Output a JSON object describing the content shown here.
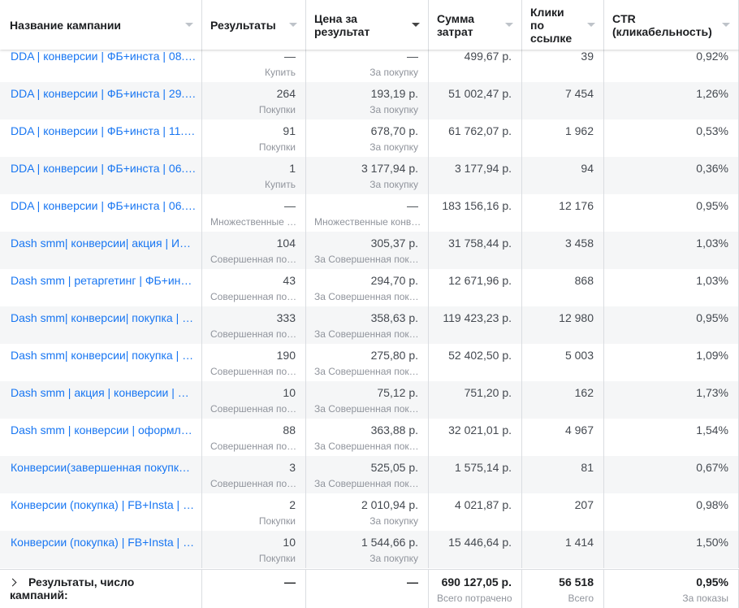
{
  "headers": [
    "Название кампании",
    "Результаты",
    "Цена за результат",
    "Сумма затрат",
    "Клики по ссылке",
    "CTR (кликабельность)"
  ],
  "rows": [
    {
      "name": "DDA | конверсии | ФБ+инста | 08.…",
      "results": "—",
      "results_sub": "Купить",
      "cpr": "—",
      "cpr_sub": "За покупку",
      "spend": "499,67 р.",
      "clicks": "39",
      "ctr": "0,92%"
    },
    {
      "name": "DDA | конверсии | ФБ+инста | 29.…",
      "results": "264",
      "results_sub": "Покупки",
      "cpr": "193,19 р.",
      "cpr_sub": "За покупку",
      "spend": "51 002,47 р.",
      "clicks": "7 454",
      "ctr": "1,26%"
    },
    {
      "name": "DDA | конверсии | ФБ+инста | 11.…",
      "results": "91",
      "results_sub": "Покупки",
      "cpr": "678,70 р.",
      "cpr_sub": "За покупку",
      "spend": "61 762,07 р.",
      "clicks": "1 962",
      "ctr": "0,53%"
    },
    {
      "name": "DDA | конверсии | ФБ+инста | 06.…",
      "results": "1",
      "results_sub": "Купить",
      "cpr": "3 177,94 р.",
      "cpr_sub": "За покупку",
      "spend": "3 177,94 р.",
      "clicks": "94",
      "ctr": "0,36%"
    },
    {
      "name": "DDA | конверсии | ФБ+инста | 06.…",
      "results": "—",
      "results_sub": "Множественные …",
      "cpr": "—",
      "cpr_sub": "Множественные конв…",
      "spend": "183 156,16 р.",
      "clicks": "12 176",
      "ctr": "0,95%"
    },
    {
      "name": "Dash smm| конверсии| акция | И…",
      "results": "104",
      "results_sub": "Совершенная по…",
      "cpr": "305,37 р.",
      "cpr_sub": "За Совершенная пок…",
      "spend": "31 758,44 р.",
      "clicks": "3 458",
      "ctr": "1,03%"
    },
    {
      "name": "Dash smm | ретаргетинг | ФБ+ин…",
      "results": "43",
      "results_sub": "Совершенная по…",
      "cpr": "294,70 р.",
      "cpr_sub": "За Совершенная пок…",
      "spend": "12 671,96 р.",
      "clicks": "868",
      "ctr": "1,03%"
    },
    {
      "name": "Dash smm| конверсии| покупка | …",
      "results": "333",
      "results_sub": "Совершенная по…",
      "cpr": "358,63 р.",
      "cpr_sub": "За Совершенная пок…",
      "spend": "119 423,23 р.",
      "clicks": "12 980",
      "ctr": "0,95%"
    },
    {
      "name": "Dash smm| конверсии| покупка | …",
      "results": "190",
      "results_sub": "Совершенная по…",
      "cpr": "275,80 р.",
      "cpr_sub": "За Совершенная пок…",
      "spend": "52 402,50 р.",
      "clicks": "5 003",
      "ctr": "1,09%"
    },
    {
      "name": "Dash smm | акция | конверсии | …",
      "results": "10",
      "results_sub": "Совершенная по…",
      "cpr": "75,12 р.",
      "cpr_sub": "За Совершенная пок…",
      "spend": "751,20 р.",
      "clicks": "162",
      "ctr": "1,73%"
    },
    {
      "name": "Dash smm | конверсии | оформл…",
      "results": "88",
      "results_sub": "Совершенная по…",
      "cpr": "363,88 р.",
      "cpr_sub": "За Совершенная пок…",
      "spend": "32 021,01 р.",
      "clicks": "4 967",
      "ctr": "1,54%"
    },
    {
      "name": "Конверсии(завершенная покупк…",
      "results": "3",
      "results_sub": "Совершенная по…",
      "cpr": "525,05 р.",
      "cpr_sub": "За Совершенная пок…",
      "spend": "1 575,14 р.",
      "clicks": "81",
      "ctr": "0,67%"
    },
    {
      "name": "Конверсии (покупка) | FB+Insta | …",
      "results": "2",
      "results_sub": "Покупки",
      "cpr": "2 010,94 р.",
      "cpr_sub": "За покупку",
      "spend": "4 021,87 р.",
      "clicks": "207",
      "ctr": "0,98%"
    },
    {
      "name": "Конверсии (покупка) | FB+Insta | …",
      "results": "10",
      "results_sub": "Покупки",
      "cpr": "1 544,66 р.",
      "cpr_sub": "За покупку",
      "spend": "15 446,64 р.",
      "clicks": "1 414",
      "ctr": "1,50%"
    }
  ],
  "footer": {
    "label": "Результаты, число кампаний:",
    "results": "—",
    "cpr": "—",
    "spend": "690 127,05 р.",
    "spend_sub": "Всего потрачено",
    "clicks": "56 518",
    "clicks_sub": "Всего",
    "ctr": "0,95%",
    "ctr_sub": "За показы"
  }
}
